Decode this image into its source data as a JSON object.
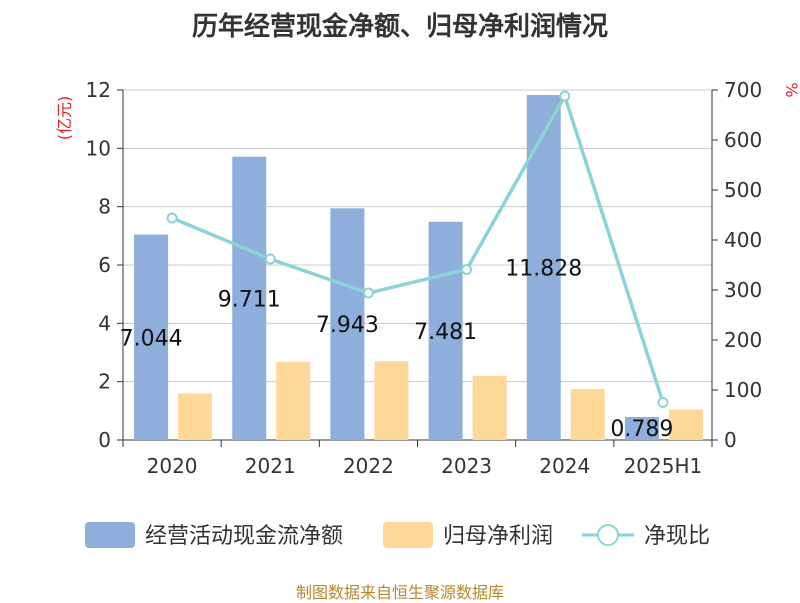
{
  "title": "历年经营现金净额、归母净利润情况",
  "source": "制图数据来自恒生聚源数据库",
  "chart_data": {
    "type": "bar",
    "categories": [
      "2020",
      "2021",
      "2022",
      "2023",
      "2024",
      "2025H1"
    ],
    "y_left": {
      "label": "(亿元)",
      "min": 0,
      "max": 12,
      "ticks": [
        0,
        2,
        4,
        6,
        8,
        10,
        12
      ]
    },
    "y_right": {
      "label": "%",
      "min": 0,
      "max": 700,
      "ticks": [
        0,
        100,
        200,
        300,
        400,
        500,
        600,
        700
      ]
    },
    "grid": true,
    "legend_position": "bottom",
    "series": [
      {
        "name": "经营活动现金流净额",
        "type": "bar",
        "axis": "left",
        "color": "#8eaedb",
        "values": [
          7.044,
          9.711,
          7.943,
          7.481,
          11.828,
          0.789
        ],
        "labels": [
          "7.044",
          "9.711",
          "7.943",
          "7.481",
          "11.828",
          "0.789"
        ]
      },
      {
        "name": "归母净利润",
        "type": "bar",
        "axis": "left",
        "color": "#fdd899",
        "values": [
          1.6,
          2.68,
          2.7,
          2.2,
          1.75,
          1.05
        ]
      },
      {
        "name": "净现比",
        "type": "line",
        "axis": "right",
        "color": "#8ad3d6",
        "values": [
          444,
          362,
          294,
          341,
          688,
          75
        ]
      }
    ]
  }
}
